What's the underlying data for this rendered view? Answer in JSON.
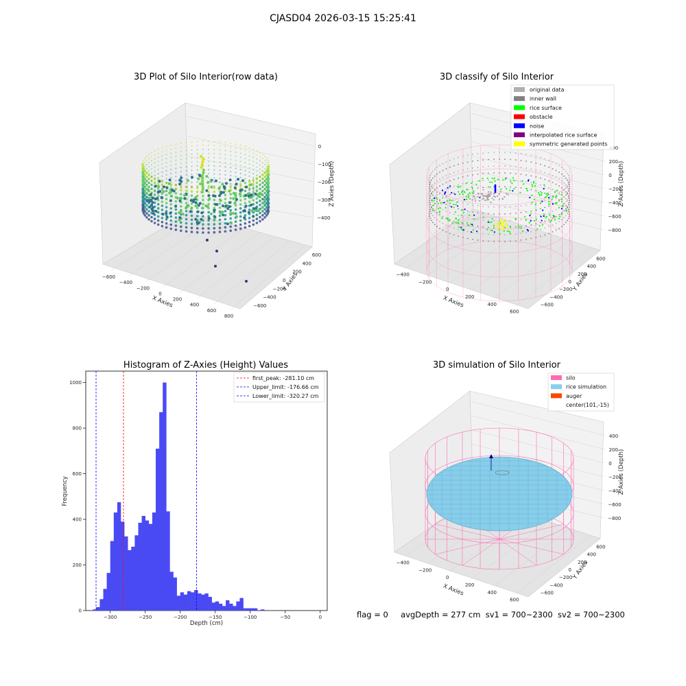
{
  "suptitle": "CJASD04 2026-03-15 15:25:41",
  "footer": {
    "flag": "flag = 0",
    "avg_depth": "avgDepth = 277 cm",
    "sv1": "sv1 = 700~2300",
    "sv2": "sv2 = 700~2300"
  },
  "colors": {
    "hist_bar": "#4a4af4",
    "first_peak": "#ff0000",
    "limits": "#0000ff",
    "silo_wire": "#ff69b4",
    "rice_sim": "#87ceeb",
    "noise": "#0000ff",
    "rice_surface": "#00ff00"
  },
  "chart_data": [
    {
      "type": "scatter",
      "title": "3D Plot of Silo Interior(row data)",
      "xlabel": "X Axies",
      "ylabel": "Y Axies",
      "zlabel": "Z Axies (Depth)",
      "xticks": [
        "−600",
        "−400",
        "−200",
        "0",
        "200",
        "400",
        "600",
        "800"
      ],
      "yticks": [
        "−600",
        "−400",
        "−200",
        "0",
        "200",
        "400",
        "600"
      ],
      "zticks": [
        "0",
        "−100",
        "−200",
        "−300",
        "−400"
      ],
      "colormap": "viridis"
    },
    {
      "type": "scatter",
      "title": "3D classify of Silo Interior",
      "xlabel": "X Axies",
      "ylabel": "Y Axies",
      "zlabel": "Z Axies (Depth)",
      "xticks": [
        "−400",
        "−200",
        "0",
        "200",
        "400",
        "600"
      ],
      "yticks": [
        "−600",
        "−400",
        "−200",
        "0",
        "200",
        "400",
        "600"
      ],
      "zticks": [
        "400",
        "200",
        "0",
        "−200",
        "−400",
        "−600",
        "−800"
      ],
      "legend": [
        {
          "label": "original data",
          "color": "#b0b0b0"
        },
        {
          "label": "inner wall",
          "color": "#808080"
        },
        {
          "label": "rice surface",
          "color": "#00ff00"
        },
        {
          "label": "obstacle",
          "color": "#ff0000"
        },
        {
          "label": "noise",
          "color": "#0000ff"
        },
        {
          "label": "interpolated rice surface",
          "color": "#800080"
        },
        {
          "label": "symmetric generated points",
          "color": "#ffff00"
        }
      ],
      "legend_loc": "upper right"
    },
    {
      "type": "bar",
      "title": "Histogram of Z-Axies (Height) Values",
      "xlabel": "Depth (cm)",
      "ylabel": "Frequency",
      "xlim": [
        -335,
        10
      ],
      "ylim": [
        0,
        1050
      ],
      "xticks": [
        -300,
        -250,
        -200,
        -150,
        -100,
        -50,
        0
      ],
      "xtick_labels": [
        "−300",
        "−250",
        "−200",
        "−150",
        "−100",
        "−50",
        "0"
      ],
      "yticks": [
        0,
        200,
        400,
        600,
        800,
        1000
      ],
      "bin_start": -325,
      "bin_width": 5,
      "values": [
        5,
        15,
        50,
        95,
        165,
        305,
        430,
        475,
        390,
        325,
        265,
        280,
        330,
        385,
        415,
        395,
        380,
        430,
        710,
        870,
        1000,
        435,
        170,
        145,
        65,
        80,
        70,
        85,
        80,
        90,
        75,
        70,
        75,
        60,
        35,
        40,
        30,
        20,
        45,
        30,
        20,
        40,
        55,
        10,
        10,
        10,
        10,
        0,
        5
      ],
      "vlines": [
        {
          "label": "first_peak: -281.10 cm",
          "x": -281.1,
          "color": "#ff0000"
        },
        {
          "label": "Upper_limit: -176.66 cm",
          "x": -176.66,
          "color": "#0000ff"
        },
        {
          "label": "Lower_limit: -320.27 cm",
          "x": -320.27,
          "color": "#0000ff"
        }
      ],
      "legend_loc": "upper right"
    },
    {
      "type": "scatter",
      "title": "3D simulation of Silo Interior",
      "xlabel": "X Axies",
      "ylabel": "Y Axies",
      "zlabel": "Z Axies (Depth)",
      "xticks": [
        "−400",
        "−200",
        "0",
        "200",
        "400",
        "600"
      ],
      "yticks": [
        "−600",
        "−400",
        "−200",
        "0",
        "200",
        "400",
        "600"
      ],
      "zticks": [
        "400",
        "200",
        "0",
        "−200",
        "−400",
        "−600",
        "−800"
      ],
      "legend": [
        {
          "label": "silo",
          "color": "#ff69b4"
        },
        {
          "label": "rice simulation",
          "color": "#87ceeb"
        },
        {
          "label": "auger",
          "color": "#ff4500"
        },
        {
          "label": "center(101,-15)",
          "color": ""
        }
      ],
      "legend_loc": "upper right"
    }
  ]
}
